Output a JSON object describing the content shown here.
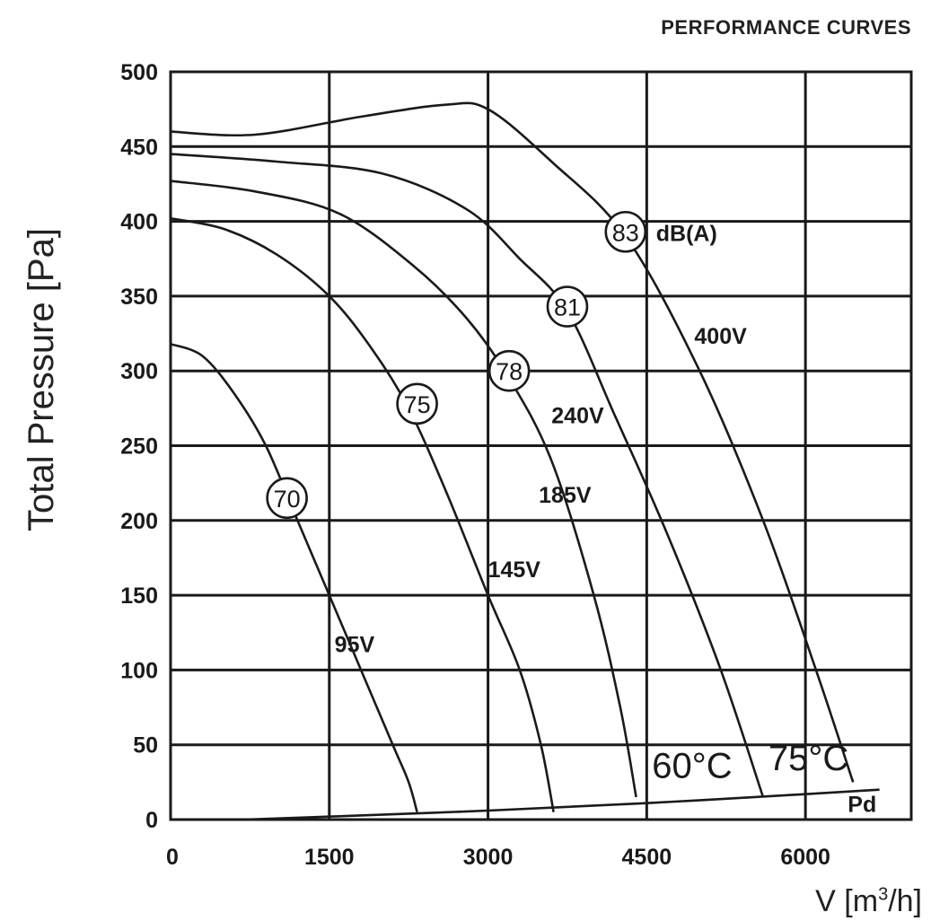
{
  "chart_data": {
    "type": "line",
    "title": "PERFORMANCE CURVES",
    "xlabel": "V [m³/h]",
    "xlabel_base": "V [m",
    "xlabel_sup": "3",
    "xlabel_tail": "/h]",
    "ylabel": "Total Pressure [Pa]",
    "xlim": [
      0,
      7000
    ],
    "ylim": [
      0,
      500
    ],
    "x_ticks": [
      0,
      1500,
      3000,
      4500,
      6000
    ],
    "x_tick_labels": [
      "0",
      "1500",
      "3000",
      "4500",
      "6000"
    ],
    "y_ticks": [
      0,
      50,
      100,
      150,
      200,
      250,
      300,
      350,
      400,
      450,
      500
    ],
    "y_tick_labels": [
      "0",
      "50",
      "100",
      "150",
      "200",
      "250",
      "300",
      "350",
      "400",
      "450",
      "500"
    ],
    "grid": true,
    "series": [
      {
        "name": "95V",
        "x": [
          0,
          300,
          600,
          900,
          1200,
          1500,
          1800,
          2100,
          2250,
          2330
        ],
        "y": [
          318,
          310,
          285,
          250,
          200,
          150,
          100,
          50,
          25,
          5
        ]
      },
      {
        "name": "145V",
        "x": [
          0,
          500,
          1000,
          1500,
          1900,
          2250,
          2600,
          3000,
          3300,
          3500,
          3620
        ],
        "y": [
          402,
          395,
          378,
          350,
          315,
          275,
          220,
          150,
          100,
          50,
          5
        ]
      },
      {
        "name": "185V",
        "x": [
          0,
          800,
          1600,
          2300,
          2800,
          3200,
          3600,
          4000,
          4250,
          4400
        ],
        "y": [
          427,
          420,
          405,
          370,
          335,
          295,
          240,
          150,
          75,
          15
        ]
      },
      {
        "name": "240V",
        "x": [
          0,
          1000,
          2000,
          2800,
          3300,
          3750,
          4200,
          4700,
          5200,
          5600
        ],
        "y": [
          445,
          440,
          432,
          408,
          375,
          340,
          270,
          190,
          100,
          15
        ]
      },
      {
        "name": "400V",
        "x": [
          0,
          800,
          1800,
          2600,
          3000,
          3600,
          4300,
          5000,
          5600,
          6100,
          6450
        ],
        "y": [
          460,
          458,
          470,
          478,
          475,
          440,
          390,
          300,
          200,
          100,
          25
        ]
      },
      {
        "name": "Pd",
        "x": [
          700,
          1500,
          3000,
          4500,
          6000,
          6700
        ],
        "y": [
          0,
          2,
          6,
          11,
          17,
          20
        ]
      }
    ],
    "series_labels": [
      "95V",
      "145V",
      "185V",
      "240V",
      "400V",
      "Pd"
    ],
    "noise_markers": [
      {
        "value": "70",
        "x": 1100,
        "y": 215
      },
      {
        "value": "75",
        "x": 2330,
        "y": 278
      },
      {
        "value": "78",
        "x": 3200,
        "y": 300
      },
      {
        "value": "81",
        "x": 3750,
        "y": 343
      },
      {
        "value": "83",
        "x": 4300,
        "y": 393
      }
    ],
    "noise_unit": "dB(A)",
    "annotations": [
      "60°C",
      "75°C"
    ]
  }
}
